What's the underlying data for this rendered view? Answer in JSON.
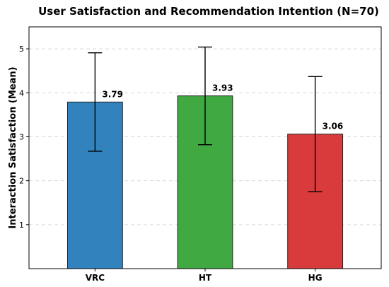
{
  "chart_data": {
    "type": "bar",
    "title": "User Satisfaction and Recommendation Intention (N=70)",
    "ylabel": "Interaction Satisfaction (Mean)",
    "xlabel": "",
    "categories": [
      "VRC",
      "HT",
      "HG"
    ],
    "values": [
      3.79,
      3.93,
      3.06
    ],
    "value_labels": [
      "3.79",
      "3.93",
      "3.06"
    ],
    "error": [
      1.12,
      1.11,
      1.31
    ],
    "colors": [
      "#3182bd",
      "#41a942",
      "#d93b3c"
    ],
    "ylim": [
      0,
      5.5
    ],
    "yticks": [
      1,
      2,
      3,
      4,
      5
    ],
    "ytick_labels": [
      "1",
      "2",
      "3",
      "4",
      "5"
    ],
    "grid": true
  }
}
